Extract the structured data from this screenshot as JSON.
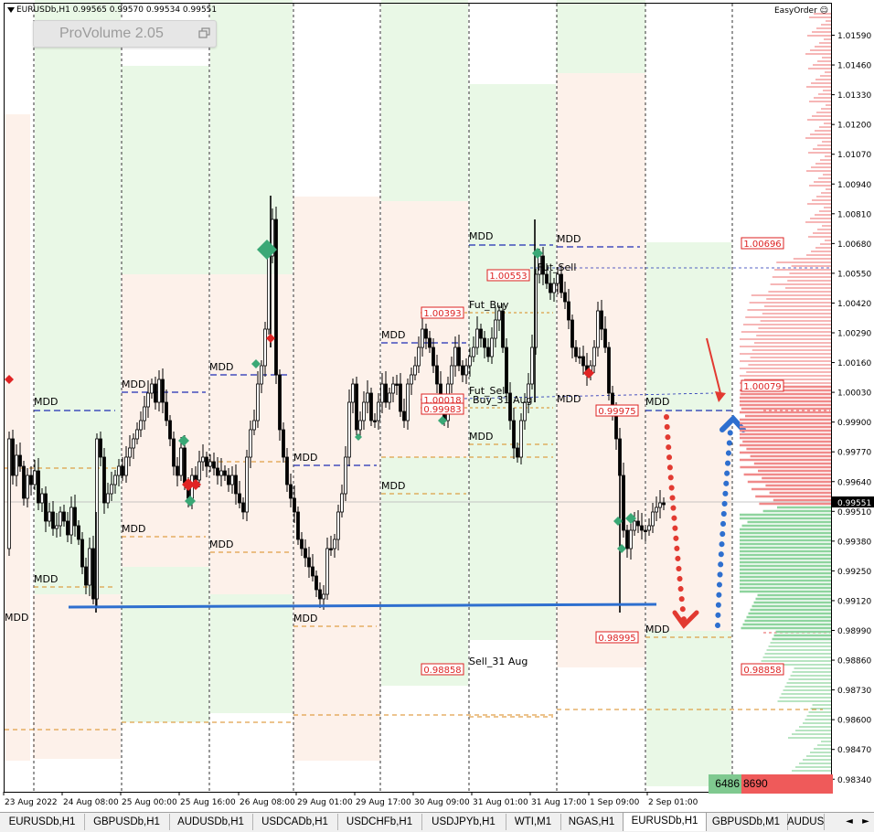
{
  "window": {
    "symbol_info": "EURUSDb,H1  0.99565 0.99570 0.99534 0.99551",
    "easy_order": "EasyOrder ☺"
  },
  "provolume": {
    "label": "ProVolume 2.05",
    "icon": "restore-window-icon"
  },
  "price_axis": {
    "labels": [
      "1.01590",
      "1.01460",
      "1.01330",
      "1.01200",
      "1.01070",
      "1.00940",
      "1.00810",
      "1.00680",
      "1.00550",
      "1.00420",
      "1.00290",
      "1.00160",
      "1.00030",
      "0.99900",
      "0.99770",
      "0.99640",
      "0.99510",
      "0.99380",
      "0.99250",
      "0.99120",
      "0.98990",
      "0.98860",
      "0.98730",
      "0.98600",
      "0.98470",
      "0.98340"
    ],
    "current_price": "0.99551"
  },
  "time_axis": [
    "23 Aug 2022",
    "24 Aug 08:00",
    "25 Aug 00:00",
    "25 Aug 16:00",
    "26 Aug 08:00",
    "29 Aug 01:00",
    "29 Aug 17:00",
    "30 Aug 09:00",
    "31 Aug 01:00",
    "31 Aug 17:00",
    "1 Sep 09:00",
    "2 Sep 01:00"
  ],
  "annotations": {
    "mdd": "MDD",
    "fut_sell": "Fut_Sell",
    "fut_buy": "Fut_Buy",
    "fut_sell_2": "Fut_Sel",
    "buy_31_aug": "Buy_31 Aug",
    "sell_31_aug": "Sell_31 Aug"
  },
  "price_boxes": {
    "p100553": "1.00553",
    "p100393": "1.00393",
    "p100018": "1.00018",
    "p099983": "0.99983",
    "p099975": "0.99975",
    "p098995": "0.98995",
    "p098858": "0.98858",
    "p100696": "1.00696",
    "p100079": "1.00079",
    "p098858_right": "0.98858"
  },
  "volume": {
    "buy": "6486",
    "sell": "8690"
  },
  "colors": {
    "bull_zone": "#e9f8e6",
    "bear_zone": "#fdf1ea",
    "mdd_line": "#1f2db4",
    "level_orange": "#d98a1e",
    "support_line": "#2e6fcf",
    "arrow_red": "#e23a31",
    "arrow_blue": "#2e6fcf",
    "marker_green": "#3aa876",
    "marker_red": "#e02424",
    "sell_profile": "#f08a8a",
    "buy_profile": "#8ed49e"
  },
  "tabs": {
    "items": [
      "EURUSDb,H1",
      "GBPUSDb,H1",
      "AUDUSDb,H1",
      "USDCADb,H1",
      "USDCHFb,H1",
      "USDJPYb,H1",
      "WTI,M1",
      "NGAS,H1",
      "EURUSDb,H1",
      "GBPUSDb,M1",
      "AUDUS"
    ],
    "active_index": 8
  }
}
